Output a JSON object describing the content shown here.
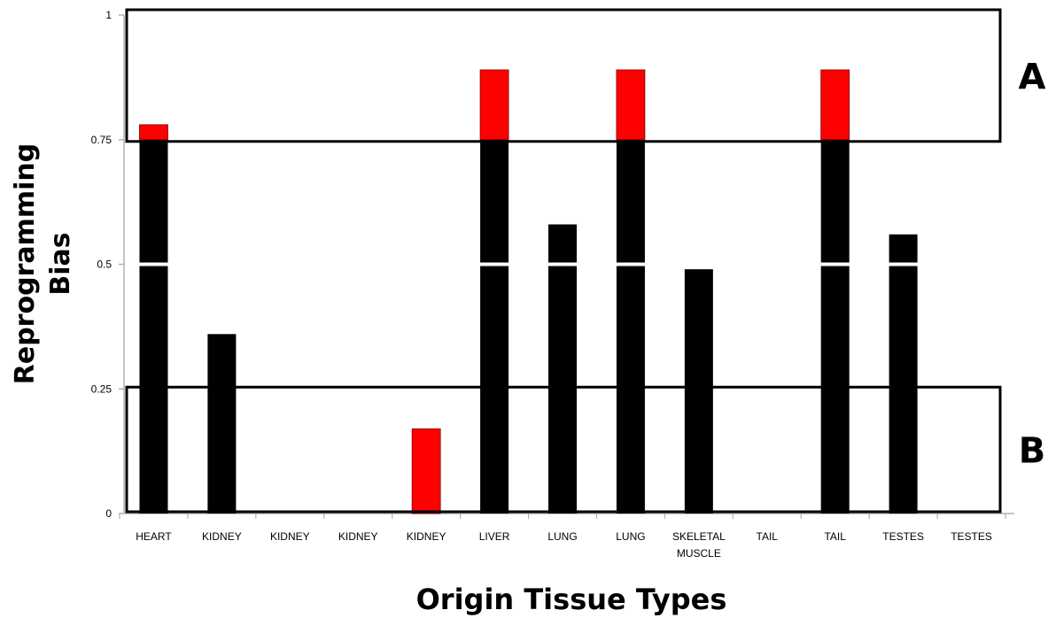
{
  "chart_data": {
    "type": "bar",
    "xlabel": "Origin Tissue Types",
    "ylabel_lines": [
      "Reprogramming",
      "Bias"
    ],
    "ylim": [
      0,
      1
    ],
    "yticks": [
      "0",
      "0.25",
      "0.5",
      "0.75",
      "1"
    ],
    "categories": [
      "HEART",
      "KIDNEY",
      "KIDNEY",
      "KIDNEY",
      "KIDNEY",
      "LIVER",
      "LUNG",
      "LUNG",
      "SKELETAL MUSCLE",
      "TAIL",
      "TAIL",
      "TESTES",
      "TESTES"
    ],
    "category_lines": [
      [
        "HEART"
      ],
      [
        "KIDNEY"
      ],
      [
        "KIDNEY"
      ],
      [
        "KIDNEY"
      ],
      [
        "KIDNEY"
      ],
      [
        "LIVER"
      ],
      [
        "LUNG"
      ],
      [
        "LUNG"
      ],
      [
        "SKELETAL",
        "MUSCLE"
      ],
      [
        "TAIL"
      ],
      [
        "TAIL"
      ],
      [
        "TESTES"
      ],
      [
        "TESTES"
      ]
    ],
    "values": [
      0.78,
      0.36,
      0,
      0,
      0.17,
      0.89,
      0.58,
      0.89,
      0.49,
      0,
      0.89,
      0.56,
      0
    ],
    "bar_colors": [
      "#000000",
      "#000000",
      "#000000",
      "#000000",
      "#ff0000",
      "#000000",
      "#000000",
      "#000000",
      "#000000",
      "#000000",
      "#000000",
      "#000000",
      "#000000"
    ],
    "highlight_color": "#ff0000",
    "base_color": "#000000",
    "regions": [
      {
        "label": "A",
        "range": [
          0.75,
          1
        ]
      },
      {
        "label": "B",
        "range": [
          0,
          0.25
        ]
      }
    ],
    "grid": false
  }
}
